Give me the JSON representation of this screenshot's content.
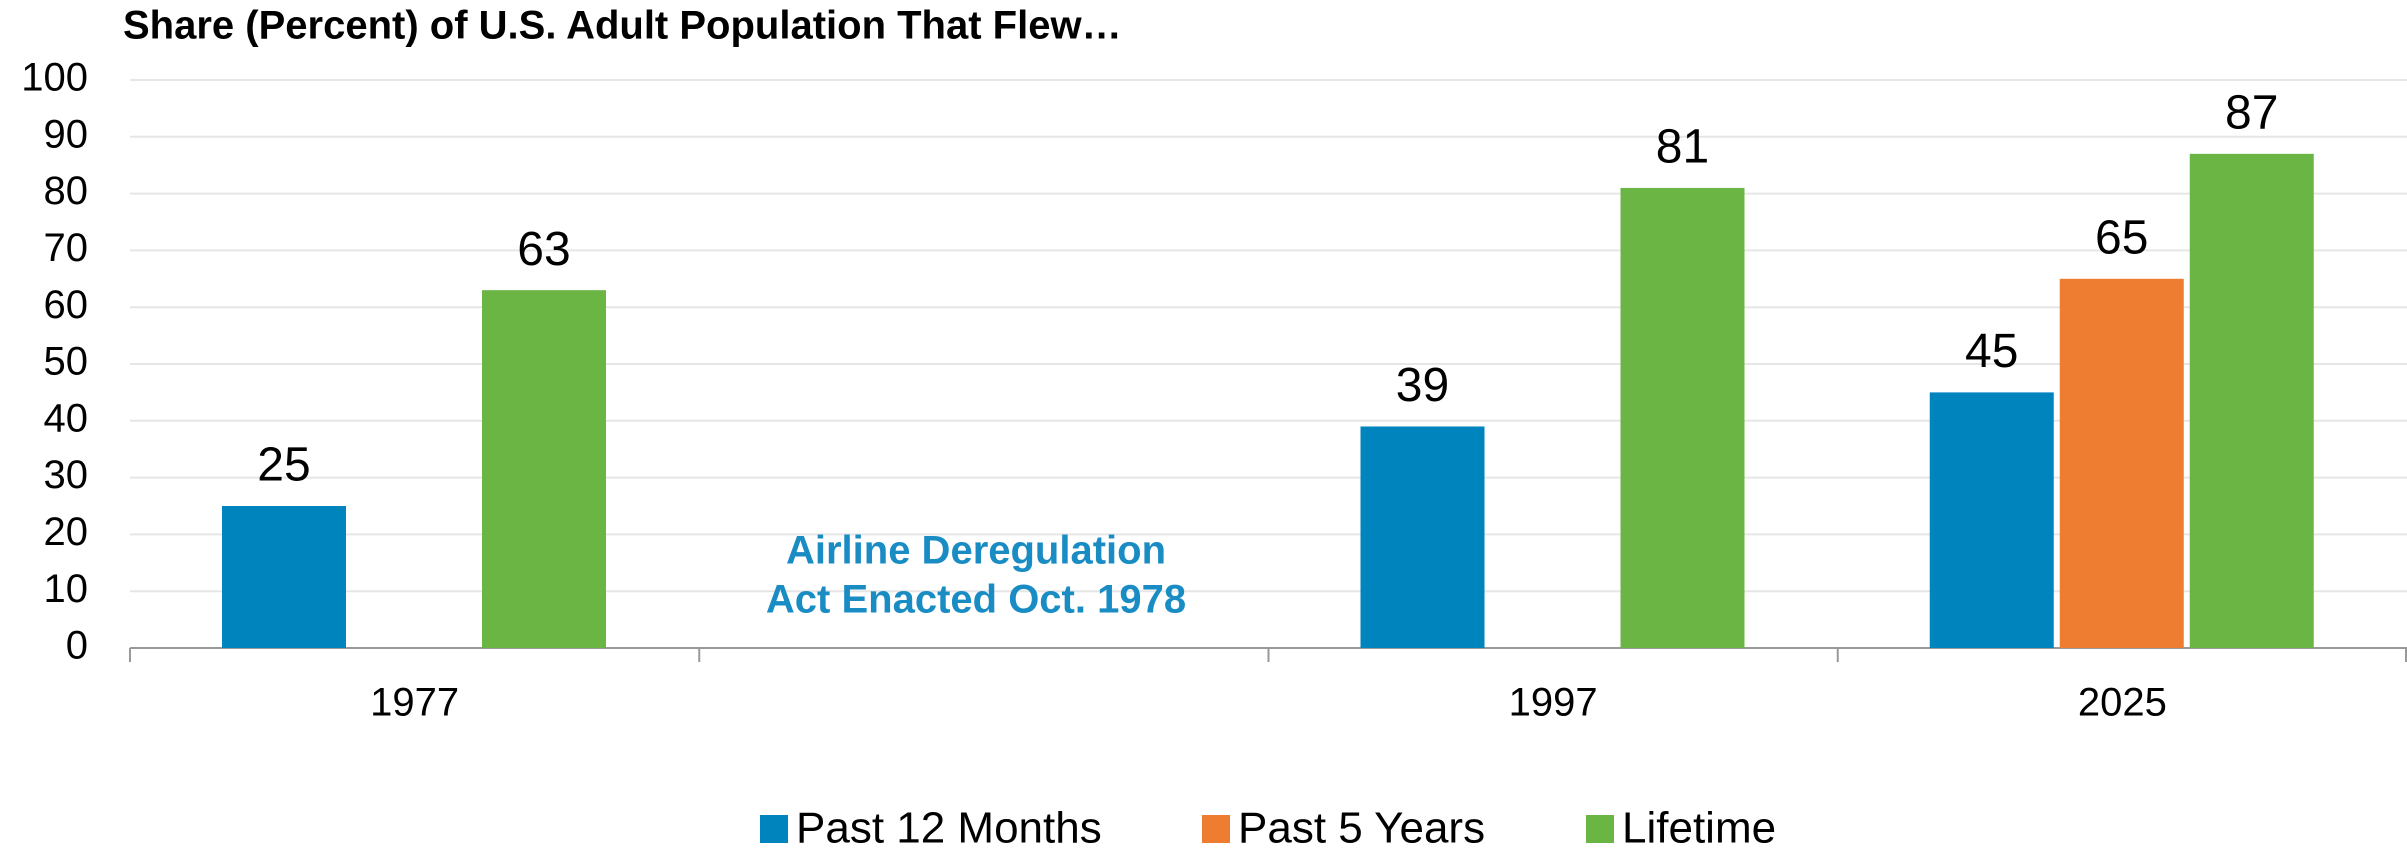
{
  "chart_data": {
    "type": "bar",
    "title": "Share (Percent) of U.S. Adult Population That Flew…",
    "categories": [
      "1977",
      null,
      "1997",
      "2025"
    ],
    "series": [
      {
        "name": "Past 12 Months",
        "color": "#0084bd",
        "values": [
          25,
          null,
          39,
          45
        ]
      },
      {
        "name": "Past 5 Years",
        "color": "#ef7d31",
        "values": [
          null,
          null,
          null,
          65
        ]
      },
      {
        "name": "Lifetime",
        "color": "#6bb544",
        "values": [
          63,
          null,
          81,
          87
        ]
      }
    ],
    "annotation": [
      "Airline Deregulation",
      "Act Enacted Oct. 1978"
    ],
    "annotation_color": "#1a8cc4",
    "ylim": [
      0,
      100
    ],
    "yticks": [
      0,
      10,
      20,
      30,
      40,
      50,
      60,
      70,
      80,
      90,
      100
    ],
    "grid": true,
    "legend": "bottom"
  }
}
